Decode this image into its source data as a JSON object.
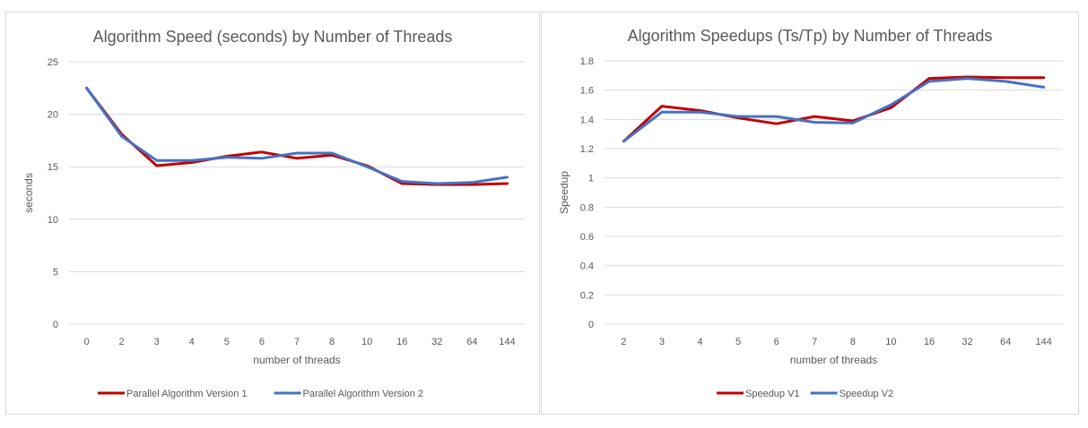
{
  "charts": [
    {
      "colors": [
        "#c00000",
        "#4472c4"
      ],
      "chart_data": {
        "type": "line",
        "title": "Algorithm Speed (seconds) by Number of Threads",
        "xlabel": "number of threads",
        "ylabel": "seconds",
        "categories": [
          "0",
          "2",
          "3",
          "4",
          "5",
          "6",
          "7",
          "8",
          "10",
          "16",
          "32",
          "64",
          "144"
        ],
        "ylim": [
          0,
          25
        ],
        "yticks": [
          "0",
          "5",
          "10",
          "15",
          "20",
          "25"
        ],
        "grid": true,
        "legend": "bottom",
        "series": [
          {
            "name": "Parallel Algorithm Version 1",
            "values": [
              22.5,
              18.1,
              15.1,
              15.4,
              16.0,
              16.4,
              15.8,
              16.1,
              15.1,
              13.4,
              13.3,
              13.3,
              13.4
            ]
          },
          {
            "name": "Parallel Algorithm Version 2",
            "values": [
              22.5,
              17.9,
              15.6,
              15.6,
              15.9,
              15.8,
              16.3,
              16.3,
              15.0,
              13.6,
              13.4,
              13.5,
              14.0
            ]
          }
        ]
      }
    },
    {
      "colors": [
        "#c00000",
        "#4472c4"
      ],
      "chart_data": {
        "type": "line",
        "title": "Algorithm Speedups (Ts/Tp) by Number of Threads",
        "xlabel": "number of threads",
        "ylabel": "Speedup",
        "categories": [
          "2",
          "3",
          "4",
          "5",
          "6",
          "7",
          "8",
          "10",
          "16",
          "32",
          "64",
          "144"
        ],
        "ylim": [
          0,
          1.8
        ],
        "yticks": [
          "0",
          "0.2",
          "0.4",
          "0.6",
          "0.8",
          "1",
          "1.2",
          "1.4",
          "1.6",
          "1.8"
        ],
        "grid": true,
        "legend": "bottom",
        "series": [
          {
            "name": "Speedup V1",
            "values": [
              1.25,
              1.49,
              1.46,
              1.41,
              1.37,
              1.42,
              1.39,
              1.48,
              1.68,
              1.69,
              1.685,
              1.685
            ]
          },
          {
            "name": "Speedup V2",
            "values": [
              1.25,
              1.45,
              1.45,
              1.42,
              1.42,
              1.38,
              1.375,
              1.5,
              1.66,
              1.68,
              1.66,
              1.62
            ]
          }
        ]
      }
    }
  ]
}
